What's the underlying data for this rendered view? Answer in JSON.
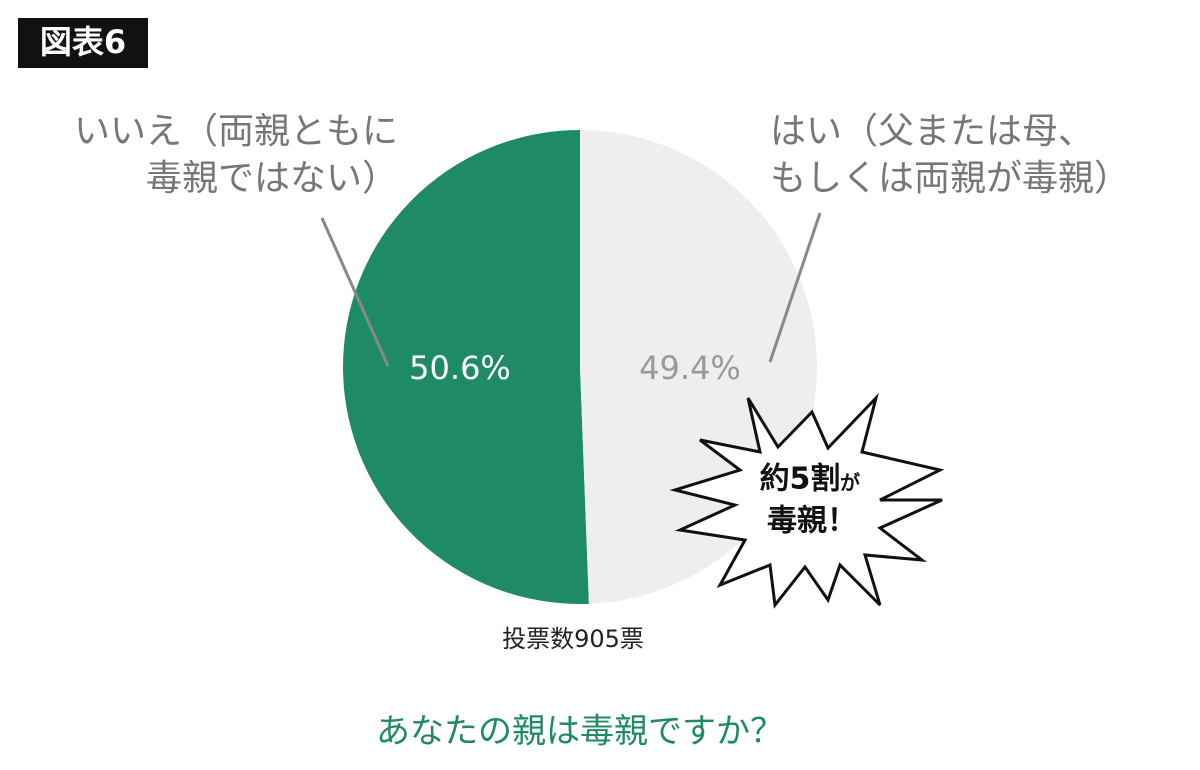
{
  "chart_data": {
    "type": "pie",
    "badge": "図表6",
    "title": "あなたの親は毒親ですか？",
    "note": "投票数905票",
    "categories": [
      [
        "いいえ（両親ともに",
        "毒親ではない）"
      ],
      [
        "はい（父または母、",
        "もしくは両親が毒親）"
      ]
    ],
    "values": [
      50.6,
      49.4
    ],
    "value_labels": [
      "50.6%",
      "49.4%"
    ],
    "colors": [
      "#1f8b66",
      "#eeeeee"
    ],
    "annotation": [
      "約5割",
      "が",
      "毒親！"
    ]
  }
}
